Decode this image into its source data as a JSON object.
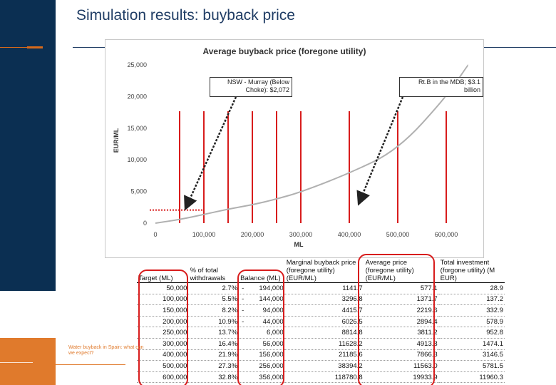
{
  "slide": {
    "title": "Simulation results: buyback price",
    "footer": "Water buyback in Spain: what can we expect?"
  },
  "colors": {
    "navy": "#0b2f52",
    "orange": "#e07a2c",
    "red": "#d81c1c",
    "curve": "#b0b0b0"
  },
  "callouts": {
    "left": "NSW - Murray (Below Choke): $2,072",
    "right": "Rt.B in the MDB; $3.1 billion"
  },
  "chart_data": {
    "type": "line",
    "title": "Average buyback price (foregone utility)",
    "xlabel": "ML",
    "ylabel": "EUR/ML",
    "xlim": [
      0,
      650000
    ],
    "ylim": [
      0,
      25000
    ],
    "x_ticks": [
      "0",
      "100,000",
      "200,000",
      "300,000",
      "400,000",
      "500,000",
      "600,000"
    ],
    "y_ticks": [
      "0",
      "5,000",
      "10,000",
      "15,000",
      "20,000",
      "25,000"
    ],
    "series": [
      {
        "x": [
          50000,
          100000,
          150000,
          200000,
          250000,
          300000,
          400000,
          500000,
          600000,
          645000
        ],
        "values": [
          577.1,
          1371.7,
          2219.6,
          2894.4,
          3811.2,
          4913.8,
          7866.3,
          11563.0,
          19933.9,
          25000
        ]
      }
    ],
    "vertical_markers": [
      50000,
      100000,
      150000,
      200000,
      250000,
      300000,
      400000,
      500000,
      600000
    ],
    "reference_line": {
      "y": 2072,
      "x_end": 200000
    }
  },
  "table": {
    "headers": [
      "Target (ML)",
      "% of total withdrawals",
      "Balance (ML)",
      "Marginal buyback price (foregone utility) (EUR/ML)",
      "Average price (foregone utility) (EUR/ML)",
      "Total investment (forgone utility) (M EUR)"
    ],
    "rows": [
      {
        "target": "50,000",
        "pct": "2.7%",
        "sign": "-",
        "balance": "194,000",
        "marginal": "1141.7",
        "average": "577.1",
        "total": "28.9"
      },
      {
        "target": "100,000",
        "pct": "5.5%",
        "sign": "-",
        "balance": "144,000",
        "marginal": "3296.8",
        "average": "1371.7",
        "total": "137.2"
      },
      {
        "target": "150,000",
        "pct": "8.2%",
        "sign": "-",
        "balance": "94,000",
        "marginal": "4415.7",
        "average": "2219.6",
        "total": "332.9"
      },
      {
        "target": "200,000",
        "pct": "10.9%",
        "sign": "-",
        "balance": "44,000",
        "marginal": "6026.5",
        "average": "2894.4",
        "total": "578.9"
      },
      {
        "target": "250,000",
        "pct": "13.7%",
        "sign": "",
        "balance": "6,000",
        "marginal": "8814.8",
        "average": "3811.2",
        "total": "952.8"
      },
      {
        "target": "300,000",
        "pct": "16.4%",
        "sign": "",
        "balance": "56,000",
        "marginal": "11628.2",
        "average": "4913.8",
        "total": "1474.1"
      },
      {
        "target": "400,000",
        "pct": "21.9%",
        "sign": "",
        "balance": "156,000",
        "marginal": "21185.6",
        "average": "7866.3",
        "total": "3146.5"
      },
      {
        "target": "500,000",
        "pct": "27.3%",
        "sign": "",
        "balance": "256,000",
        "marginal": "38394.2",
        "average": "11563.0",
        "total": "5781.5"
      },
      {
        "target": "600,000",
        "pct": "32.8%",
        "sign": "",
        "balance": "356,000",
        "marginal": "118780.8",
        "average": "19933.9",
        "total": "11960.3"
      }
    ]
  }
}
